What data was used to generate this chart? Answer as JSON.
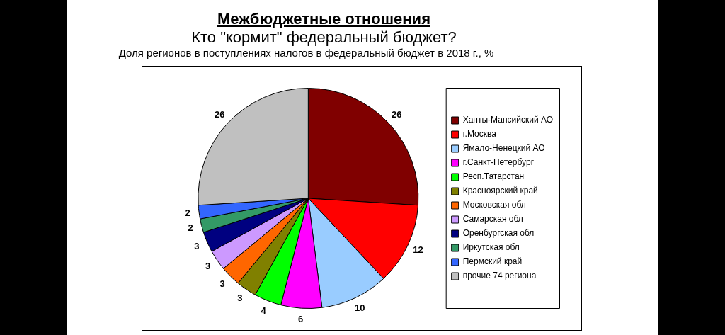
{
  "chart_data": {
    "type": "pie",
    "title": "Межбюджетные отношения",
    "subtitle": "Кто \"кормит\" федеральный бюджет?",
    "annotations": [
      "Доля регионов в поступлениях налогов в федеральный бюджет в 2018 г.,  %"
    ],
    "categories": [
      "Ханты-Мансийский АО",
      "г.Москва",
      "Ямало-Ненецкий АО",
      "г.Санкт-Петербург",
      "Респ.Татарстан",
      "Красноярский край",
      "Московская обл",
      "Самарская обл",
      "Оренбургская обл",
      "Иркутская обл",
      "Пермский край",
      "прочие 74 региона"
    ],
    "values": [
      26,
      12,
      10,
      6,
      4,
      3,
      3,
      3,
      3,
      2,
      2,
      26
    ],
    "colors": [
      "#800000",
      "#ff0000",
      "#99ccff",
      "#ff00ff",
      "#00ff00",
      "#808000",
      "#ff6600",
      "#cc99ff",
      "#000080",
      "#339966",
      "#3366ff",
      "#c0c0c0"
    ],
    "data_labels": true,
    "legend": "right"
  }
}
